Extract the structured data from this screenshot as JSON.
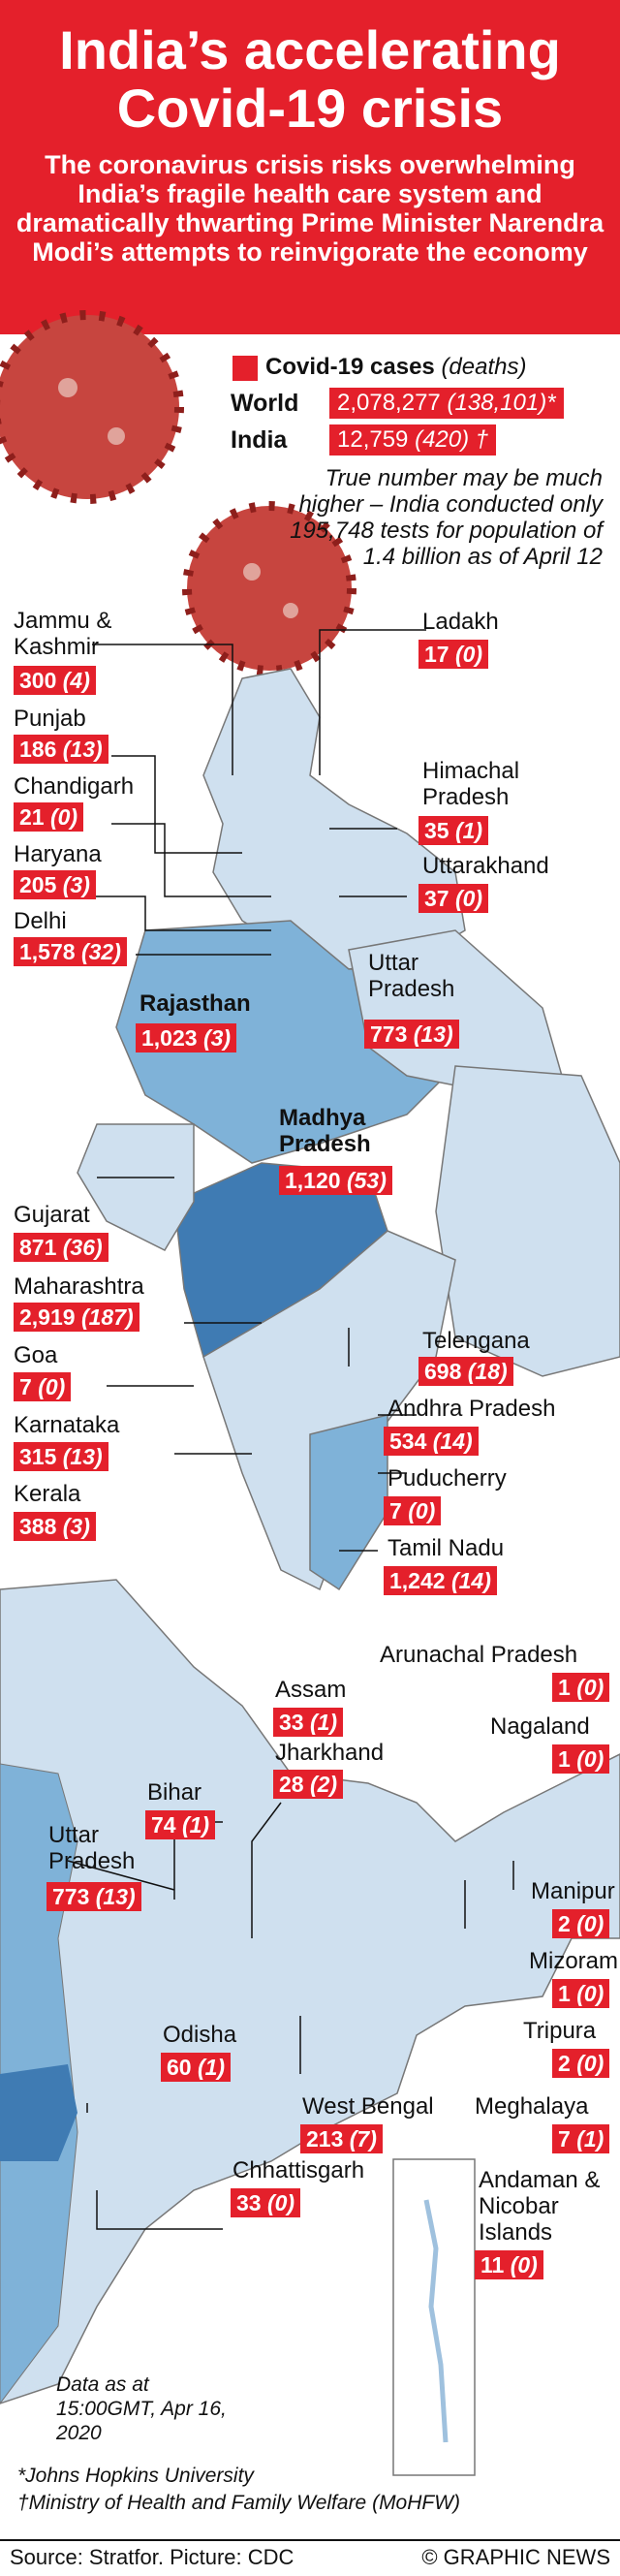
{
  "title": "India’s accelerating Covid-19 crisis",
  "subtitle": "The coronavirus crisis risks overwhelming India’s fragile health care system and dramatically thwarting Prime Minister Narendra Modi’s attempts to reinvigorate the economy",
  "legend": {
    "label": "Covid-19 cases",
    "sublabel": "(deaths)"
  },
  "totals": [
    {
      "name": "World",
      "cases": "2,078,277",
      "deaths": "(138,101)*"
    },
    {
      "name": "India",
      "cases": "12,759",
      "deaths": "(420) †"
    }
  ],
  "note": "True number may be much higher – India conducted only 195,748 tests for population of 1.4 billion as of April 12",
  "states": {
    "jammu": {
      "name": "Jammu & Kashmir",
      "cases": "300",
      "deaths": "(4)"
    },
    "punjab": {
      "name": "Punjab",
      "cases": "186",
      "deaths": "(13)"
    },
    "chandigarh": {
      "name": "Chandigarh",
      "cases": "21",
      "deaths": "(0)"
    },
    "haryana": {
      "name": "Haryana",
      "cases": "205",
      "deaths": "(3)"
    },
    "delhi": {
      "name": "Delhi",
      "cases": "1,578",
      "deaths": "(32)"
    },
    "rajasthan": {
      "name": "Rajasthan",
      "cases": "1,023",
      "deaths": "(3)"
    },
    "ladakh": {
      "name": "Ladakh",
      "cases": "17",
      "deaths": "(0)"
    },
    "himachal": {
      "name": "Himachal Pradesh",
      "cases": "35",
      "deaths": "(1)"
    },
    "uttarakhand": {
      "name": "Uttarakhand",
      "cases": "37",
      "deaths": "(0)"
    },
    "uttarpradesh": {
      "name": "Uttar Pradesh",
      "cases": "773",
      "deaths": "(13)"
    },
    "madhyapradesh": {
      "name": "Madhya Pradesh",
      "cases": "1,120",
      "deaths": "(53)"
    },
    "gujarat": {
      "name": "Gujarat",
      "cases": "871",
      "deaths": "(36)"
    },
    "maharashtra": {
      "name": "Maharashtra",
      "cases": "2,919",
      "deaths": "(187)"
    },
    "goa": {
      "name": "Goa",
      "cases": "7",
      "deaths": "(0)"
    },
    "karnataka": {
      "name": "Karnataka",
      "cases": "315",
      "deaths": "(13)"
    },
    "kerala": {
      "name": "Kerala",
      "cases": "388",
      "deaths": "(3)"
    },
    "telengana": {
      "name": "Telengana",
      "cases": "698",
      "deaths": "(18)"
    },
    "andhra": {
      "name": "Andhra Pradesh",
      "cases": "534",
      "deaths": "(14)"
    },
    "puducherry": {
      "name": "Puducherry",
      "cases": "7",
      "deaths": "(0)"
    },
    "tamilnadu": {
      "name": "Tamil Nadu",
      "cases": "1,242",
      "deaths": "(14)"
    },
    "arunachal": {
      "name": "Arunachal Pradesh",
      "cases": "1",
      "deaths": "(0)"
    },
    "assam": {
      "name": "Assam",
      "cases": "33",
      "deaths": "(1)"
    },
    "jharkhand": {
      "name": "Jharkhand",
      "cases": "28",
      "deaths": "(2)"
    },
    "nagaland": {
      "name": "Nagaland",
      "cases": "1",
      "deaths": "(0)"
    },
    "bihar": {
      "name": "Bihar",
      "cases": "74",
      "deaths": "(1)"
    },
    "uttarpradesh2": {
      "name": "Uttar Pradesh",
      "cases": "773",
      "deaths": "(13)"
    },
    "manipur": {
      "name": "Manipur",
      "cases": "2",
      "deaths": "(0)"
    },
    "mizoram": {
      "name": "Mizoram",
      "cases": "1",
      "deaths": "(0)"
    },
    "tripura": {
      "name": "Tripura",
      "cases": "2",
      "deaths": "(0)"
    },
    "odisha": {
      "name": "Odisha",
      "cases": "60",
      "deaths": "(1)"
    },
    "westbengal": {
      "name": "West Bengal",
      "cases": "213",
      "deaths": "(7)"
    },
    "meghalaya": {
      "name": "Meghalaya",
      "cases": "7",
      "deaths": "(1)"
    },
    "chhattisgarh": {
      "name": "Chhattisgarh",
      "cases": "33",
      "deaths": "(0)"
    },
    "andaman": {
      "name": "Andaman & Nicobar Islands",
      "cases": "11",
      "deaths": "(0)"
    }
  },
  "footer": {
    "data_as_at": "Data as at 15:00GMT, Apr 16, 2020",
    "note1": "*Johns Hopkins University",
    "note2": "†Ministry of Health and Family Welfare (MoHFW)",
    "source": "Source: Stratfor. Picture: CDC",
    "credit": "© GRAPHIC NEWS"
  },
  "colors": {
    "red": "#e4202b",
    "light_blue": "#cfe0ef",
    "mid_blue": "#7fb2d8",
    "dark_blue": "#3f7bb3"
  }
}
